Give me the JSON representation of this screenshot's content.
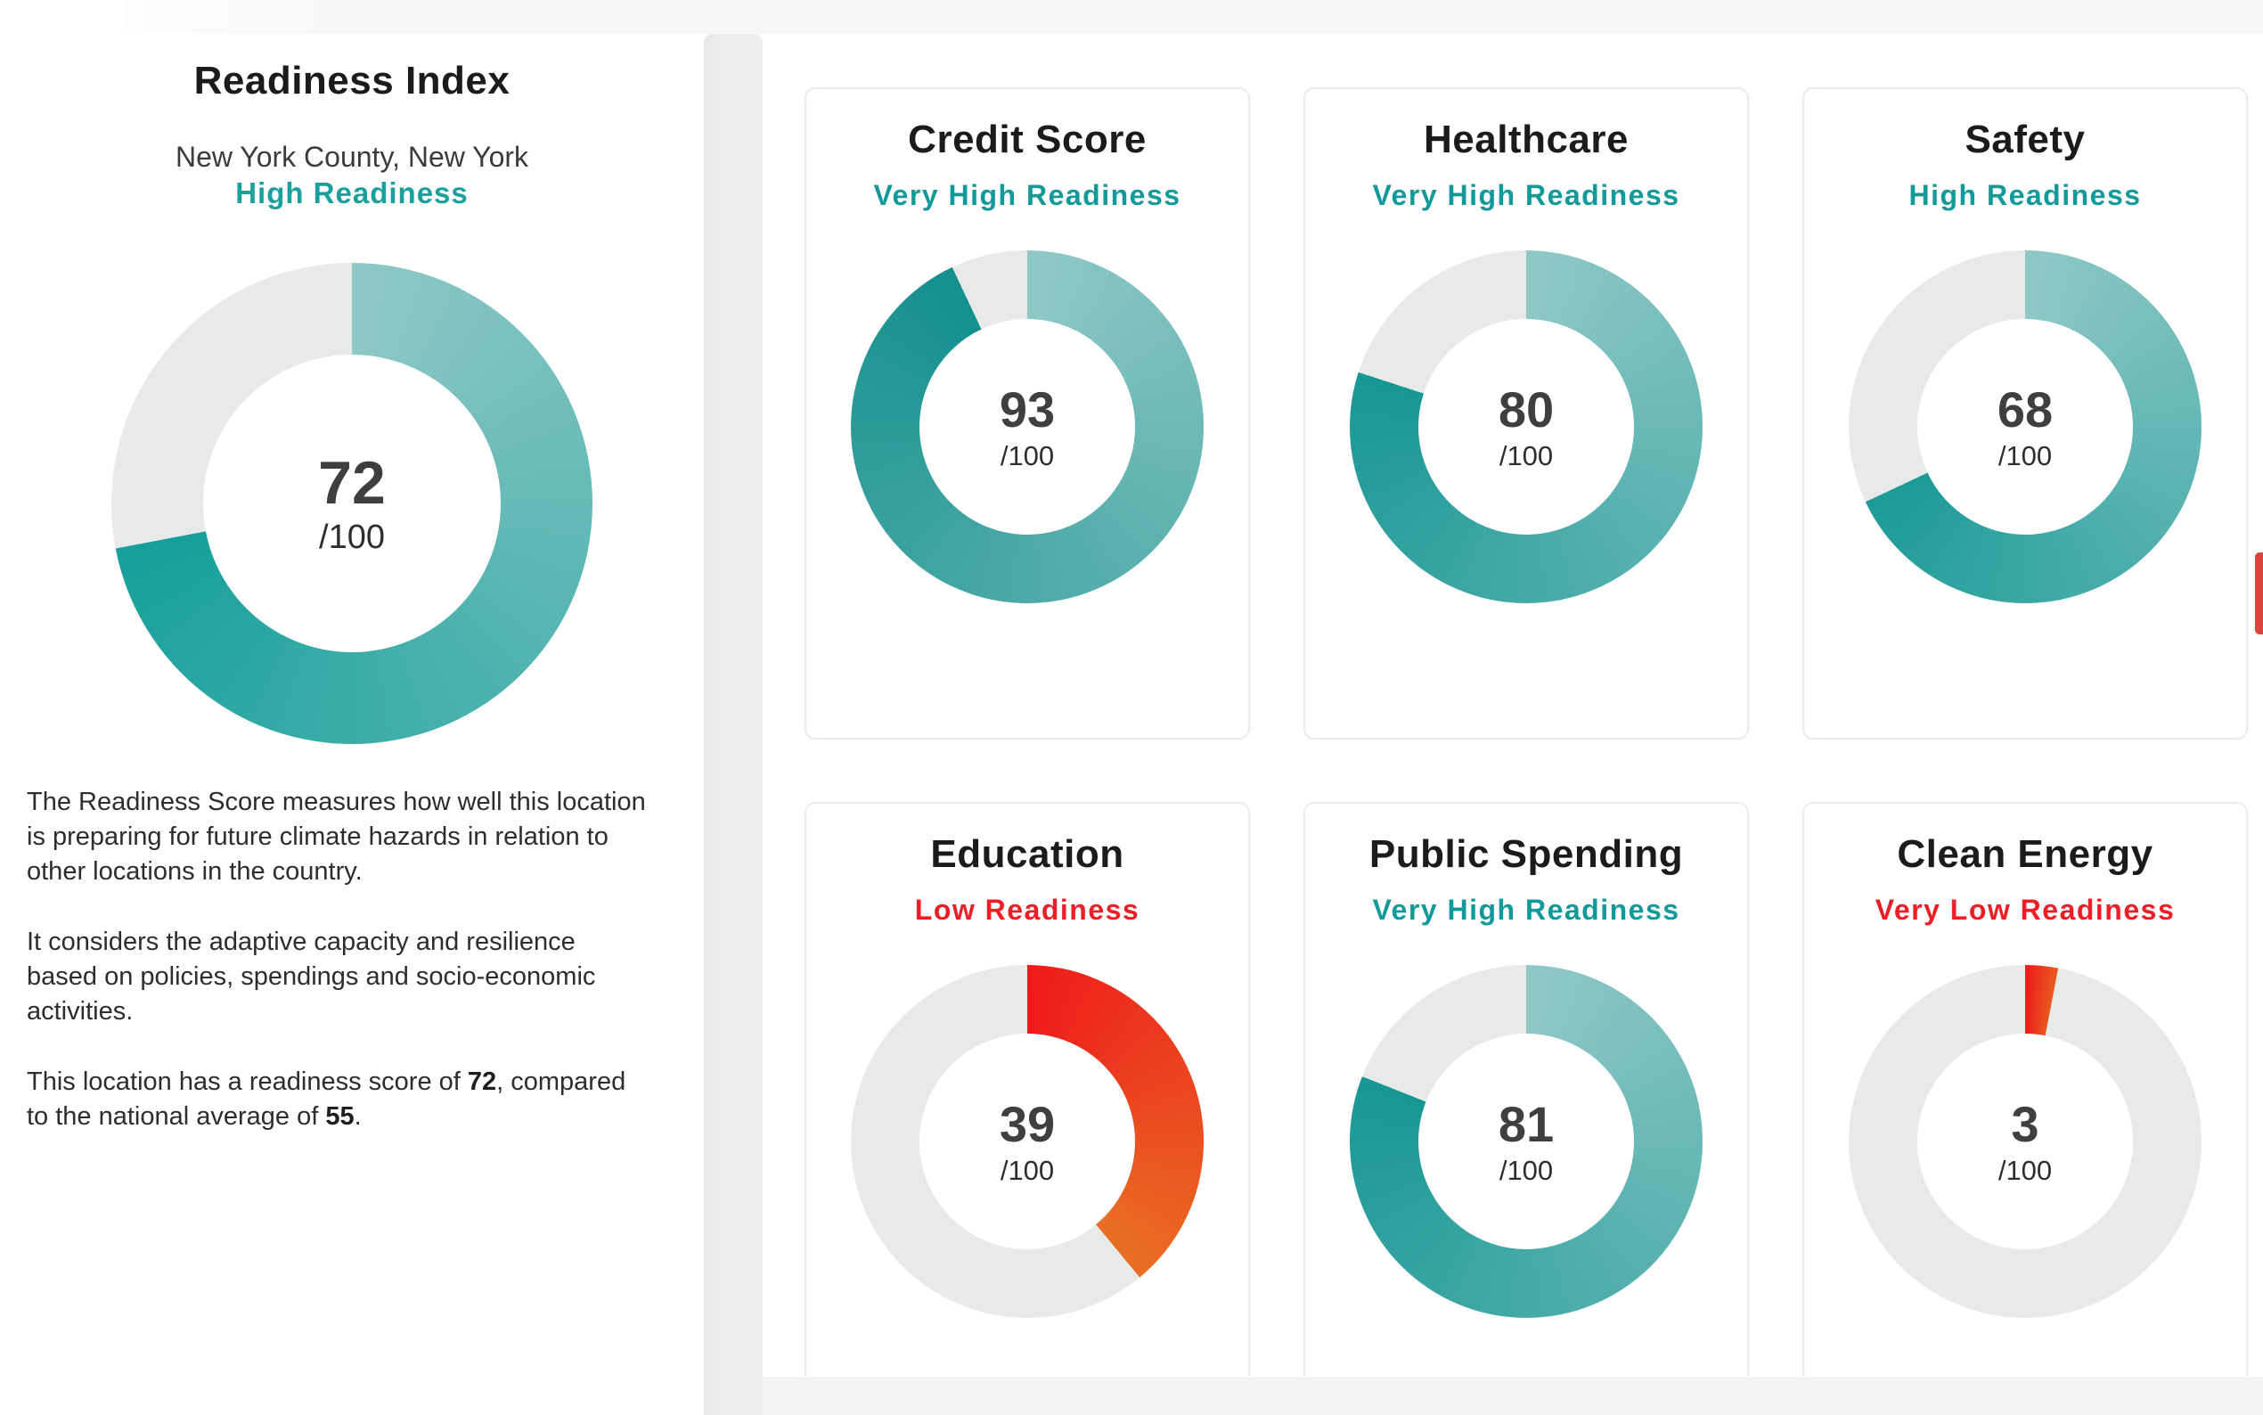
{
  "page": {
    "background": "#FFFFFF",
    "top_band_color": "#F6F7F7",
    "bottom_band_color": "#F2F3F3",
    "scrollbar_color": "#EDEEF0",
    "right_edge_fragment_color": "#D9453C",
    "accent_teal": "#12999A",
    "accent_red": "#EC1F26",
    "track_gray": "#E8EAEA"
  },
  "left_panel": {
    "title": "Readiness Index",
    "location": "New York County, New York",
    "readiness_label": "High Readiness",
    "readiness_label_color": "#1BA09E",
    "gauge": {
      "score": "72",
      "denominator": "/100",
      "percent": 72,
      "gradient_start": "#8FC8C7",
      "gradient_end": "#16A09B",
      "track_color": "#E8EAEA"
    },
    "description": {
      "p1": "The Readiness Score measures how well this location is preparing for future climate hazards in relation to other locations in the country.",
      "p2": "It considers the adaptive capacity and resilience based on policies, spendings and socio-economic activities.",
      "p3_parts": [
        "This location has a readiness score of ",
        "72",
        ", compared to the national average of ",
        "55",
        "."
      ]
    }
  },
  "cards": [
    {
      "title": "Credit Score",
      "status": "Very High Readiness",
      "status_color": "#12999A",
      "gauge": {
        "score": "93",
        "denominator": "/100",
        "percent": 93,
        "gradient_start": "#8FC8C7",
        "gradient_end": "#13908D",
        "track_color": "#E8EAEA"
      }
    },
    {
      "title": "Healthcare",
      "status": "Very High Readiness",
      "status_color": "#12999A",
      "gauge": {
        "score": "80",
        "denominator": "/100",
        "percent": 80,
        "gradient_start": "#8FC8C7",
        "gradient_end": "#179794",
        "track_color": "#E8EAEA"
      }
    },
    {
      "title": "Safety",
      "status": "High Readiness",
      "status_color": "#12999A",
      "gauge": {
        "score": "68",
        "denominator": "/100",
        "percent": 68,
        "gradient_start": "#8FC8C7",
        "gradient_end": "#1C9B98",
        "track_color": "#E8EAEA"
      }
    },
    {
      "title": "Education",
      "status": "Low Readiness",
      "status_color": "#EC1F26",
      "gauge": {
        "score": "39",
        "denominator": "/100",
        "percent": 39,
        "gradient_start": "#EE1B1B",
        "gradient_end": "#E96F24",
        "track_color": "#E8EAEA"
      }
    },
    {
      "title": "Public Spending",
      "status": "Very High Readiness",
      "status_color": "#12999A",
      "gauge": {
        "score": "81",
        "denominator": "/100",
        "percent": 81,
        "gradient_start": "#8FC8C7",
        "gradient_end": "#179794",
        "track_color": "#E8EAEA"
      }
    },
    {
      "title": "Clean Energy",
      "status": "Very Low Readiness",
      "status_color": "#EC1F26",
      "gauge": {
        "score": "3",
        "denominator": "/100",
        "percent": 3,
        "gradient_start": "#ED1B1B",
        "gradient_end": "#E85A1F",
        "track_color": "#E8EAEA"
      }
    }
  ],
  "chart_data": [
    {
      "type": "pie",
      "variant": "donut-gauge",
      "title": "Readiness Index",
      "label": "High Readiness",
      "value": 72,
      "max": 100
    },
    {
      "type": "pie",
      "variant": "donut-gauge",
      "title": "Credit Score",
      "label": "Very High Readiness",
      "value": 93,
      "max": 100
    },
    {
      "type": "pie",
      "variant": "donut-gauge",
      "title": "Healthcare",
      "label": "Very High Readiness",
      "value": 80,
      "max": 100
    },
    {
      "type": "pie",
      "variant": "donut-gauge",
      "title": "Safety",
      "label": "High Readiness",
      "value": 68,
      "max": 100
    },
    {
      "type": "pie",
      "variant": "donut-gauge",
      "title": "Education",
      "label": "Low Readiness",
      "value": 39,
      "max": 100
    },
    {
      "type": "pie",
      "variant": "donut-gauge",
      "title": "Public Spending",
      "label": "Very High Readiness",
      "value": 81,
      "max": 100
    },
    {
      "type": "pie",
      "variant": "donut-gauge",
      "title": "Clean Energy",
      "label": "Very Low Readiness",
      "value": 3,
      "max": 100
    }
  ]
}
